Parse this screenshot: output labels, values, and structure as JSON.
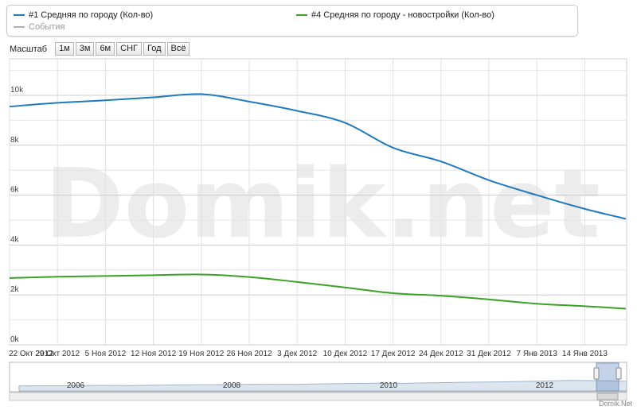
{
  "legend": {
    "items": [
      {
        "label": "#1 Средняя по городу (Кол-во)",
        "color": "#1f7bbf"
      },
      {
        "label": "#4 Средняя по городу - новостройки (Кол-во)",
        "color": "#3aa325"
      },
      {
        "label": "События",
        "color": "#b0b0b0"
      }
    ]
  },
  "zoom": {
    "label": "Масштаб",
    "buttons": [
      "1м",
      "3м",
      "6м",
      "СНГ",
      "Год",
      "Всё"
    ]
  },
  "watermark": "Domik.net",
  "footer_credit": "Domik.Net",
  "colors": {
    "series1": "#1f7bbf",
    "series2": "#3aa325",
    "grid": "#d6d6d6"
  },
  "chart_data": {
    "type": "line",
    "ylim": [
      0,
      10000
    ],
    "y_ticks": [
      "0k",
      "2k",
      "4k",
      "6k",
      "8k",
      "10k"
    ],
    "y_tick_values": [
      0,
      2000,
      4000,
      6000,
      8000,
      10000
    ],
    "x_tick_labels": [
      "22 Окт 2012",
      "29 Окт 2012",
      "5 Ноя 2012",
      "12 Ноя 2012",
      "19 Ноя 2012",
      "26 Ноя 2012",
      "3 Дек 2012",
      "10 Дек 2012",
      "17 Дек 2012",
      "24 Дек 2012",
      "31 Дек 2012",
      "7 Янв 2013",
      "14 Янв 2013"
    ],
    "x": [
      "2012-10-22",
      "2012-10-29",
      "2012-11-05",
      "2012-11-12",
      "2012-11-19",
      "2012-11-26",
      "2012-12-03",
      "2012-12-10",
      "2012-12-17",
      "2012-12-24",
      "2012-12-31",
      "2013-01-07",
      "2013-01-14",
      "2013-01-20"
    ],
    "series": [
      {
        "name": "#1 Средняя по городу (Кол-во)",
        "color": "#1f7bbf",
        "values": [
          9550,
          9700,
          9800,
          9920,
          10050,
          9750,
          9380,
          8900,
          7900,
          7350,
          6600,
          6000,
          5450,
          5050
        ]
      },
      {
        "name": "#4 Средняя по городу - новостройки (Кол-во)",
        "color": "#3aa325",
        "values": [
          2680,
          2730,
          2760,
          2790,
          2820,
          2720,
          2520,
          2300,
          2070,
          1970,
          1820,
          1650,
          1550,
          1450
        ]
      }
    ],
    "grid": true,
    "legend_position": "top",
    "navigator": {
      "year_labels": [
        "2006",
        "2008",
        "2010",
        "2012"
      ],
      "overview_values": [
        1600,
        1650,
        1700,
        1800,
        1750,
        1900,
        2000,
        2050,
        2150,
        2250,
        2200,
        2400,
        2550,
        2650,
        2600,
        2800,
        3000,
        3100,
        3250,
        3500,
        3700,
        3600,
        3400
      ]
    }
  }
}
